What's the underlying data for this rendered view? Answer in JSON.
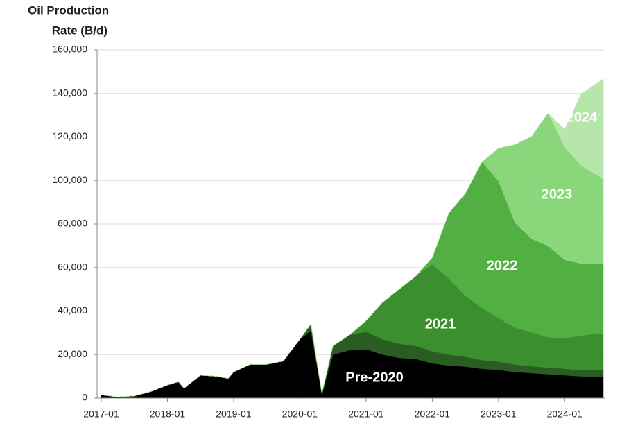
{
  "chart_data": {
    "type": "stacked_area",
    "ylabel": [
      "Oil Production",
      "Rate (B/d)"
    ],
    "x": [
      "2017-01",
      "2017-04",
      "2017-07",
      "2017-10",
      "2018-01",
      "2018-03",
      "2018-04",
      "2018-07",
      "2018-10",
      "2018-12",
      "2019-01",
      "2019-04",
      "2019-07",
      "2019-10",
      "2020-01",
      "2020-03",
      "2020-05",
      "2020-07",
      "2020-10",
      "2021-01",
      "2021-04",
      "2021-07",
      "2021-10",
      "2022-01",
      "2022-04",
      "2022-07",
      "2022-10",
      "2023-01",
      "2023-04",
      "2023-07",
      "2023-10",
      "2024-01",
      "2024-04",
      "2024-08"
    ],
    "series": [
      {
        "name": "Pre-2020",
        "color": "#000000",
        "values": [
          1500,
          500,
          1000,
          3000,
          6000,
          7500,
          4500,
          10500,
          10000,
          9000,
          12000,
          15500,
          15500,
          17000,
          27000,
          31000,
          2000,
          20000,
          22000,
          22500,
          20000,
          18500,
          18000,
          16000,
          15000,
          14500,
          13500,
          13000,
          12000,
          11500,
          11000,
          10500,
          10000,
          10000
        ]
      },
      {
        "color": "#2a5d22",
        "values": [
          0,
          0,
          0,
          0,
          0,
          0,
          0,
          0,
          0,
          0,
          0,
          0,
          0,
          0,
          0,
          3000,
          0,
          4000,
          7000,
          8000,
          7000,
          6500,
          6000,
          5500,
          5000,
          4500,
          4000,
          3800,
          3500,
          3200,
          3000,
          3000,
          2800,
          2800
        ]
      },
      {
        "name": "2021",
        "color": "#3b8f2e",
        "values": [
          0,
          0,
          0,
          0,
          0,
          0,
          0,
          0,
          0,
          0,
          0,
          0,
          0,
          0,
          0,
          0,
          0,
          0,
          0,
          5000,
          17000,
          25000,
          32000,
          40000,
          35000,
          28000,
          24000,
          20000,
          17000,
          15500,
          14000,
          14000,
          16000,
          17000
        ]
      },
      {
        "name": "2022",
        "color": "#52b043",
        "values": [
          0,
          0,
          0,
          0,
          0,
          0,
          0,
          0,
          0,
          0,
          0,
          0,
          0,
          0,
          0,
          0,
          0,
          0,
          0,
          0,
          0,
          0,
          0,
          3000,
          30000,
          47000,
          67000,
          63000,
          48000,
          43000,
          42000,
          36000,
          33000,
          32000
        ]
      },
      {
        "name": "2023",
        "color": "#8ad67a",
        "values": [
          0,
          0,
          0,
          0,
          0,
          0,
          0,
          0,
          0,
          0,
          0,
          0,
          0,
          0,
          0,
          0,
          0,
          0,
          0,
          0,
          0,
          0,
          0,
          0,
          0,
          0,
          0,
          15000,
          36000,
          47000,
          61000,
          52000,
          45000,
          39000
        ]
      },
      {
        "name": "2024",
        "color": "#b7e6aa",
        "values": [
          0,
          0,
          0,
          0,
          0,
          0,
          0,
          0,
          0,
          0,
          0,
          0,
          0,
          0,
          0,
          0,
          0,
          0,
          0,
          0,
          0,
          0,
          0,
          0,
          0,
          0,
          0,
          0,
          0,
          0,
          0,
          8000,
          33000,
          46000
        ]
      }
    ],
    "xlim": [
      "2017-01",
      "2024-08"
    ],
    "xticks": [
      "2017-01",
      "2018-01",
      "2019-01",
      "2020-01",
      "2021-01",
      "2022-01",
      "2023-01",
      "2024-01"
    ],
    "ylim": [
      0,
      160000
    ],
    "yticks": [
      0,
      {
        "value": 20000,
        "label": "20,000"
      },
      {
        "value": 40000,
        "label": "40,000"
      },
      {
        "value": 60000,
        "label": "60,000"
      },
      {
        "value": 80000,
        "label": "80,000"
      },
      {
        "value": 100000,
        "label": "100,000"
      },
      {
        "value": 120000,
        "label": "120,000"
      },
      {
        "value": 140000,
        "label": "140,000"
      },
      {
        "value": 160000,
        "label": "160,000"
      }
    ],
    "grid": true
  }
}
